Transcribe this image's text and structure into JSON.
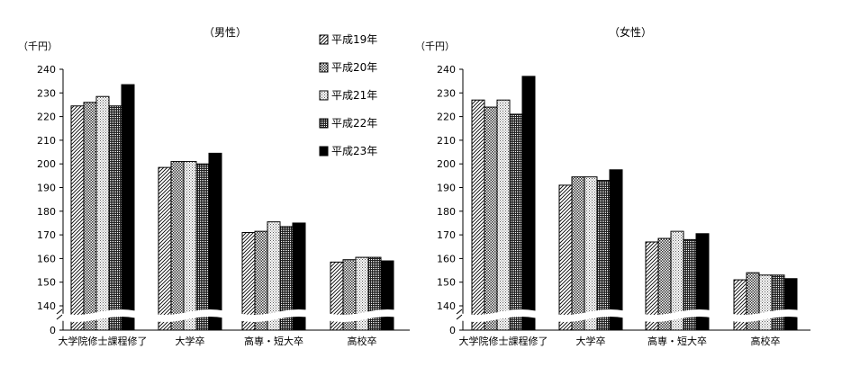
{
  "chart_data": [
    {
      "type": "bar",
      "title": "（男性）",
      "ylabel": "（千円）",
      "ylim": [
        130,
        240
      ],
      "y_axis_bottom_label": "0",
      "axis_break": true,
      "yticks": [
        240,
        230,
        220,
        210,
        200,
        190,
        180,
        170,
        160,
        150,
        140
      ],
      "categories": [
        "大学院修士課程修了",
        "大学卒",
        "高専・短大卒",
        "高校卒"
      ],
      "series": [
        {
          "name": "平成19年",
          "values": [
            224.5,
            198.5,
            171.0,
            158.5
          ]
        },
        {
          "name": "平成20年",
          "values": [
            226.0,
            201.0,
            171.5,
            159.5
          ]
        },
        {
          "name": "平成21年",
          "values": [
            228.5,
            201.0,
            175.5,
            160.5
          ]
        },
        {
          "name": "平成22年",
          "values": [
            224.5,
            200.0,
            173.5,
            160.5
          ]
        },
        {
          "name": "平成23年",
          "values": [
            233.5,
            204.5,
            175.0,
            159.0
          ]
        }
      ],
      "legend_position": "top-right"
    },
    {
      "type": "bar",
      "title": "（女性）",
      "ylabel": "（千円）",
      "ylim": [
        130,
        240
      ],
      "y_axis_bottom_label": "0",
      "axis_break": true,
      "yticks": [
        240,
        230,
        220,
        210,
        200,
        190,
        180,
        170,
        160,
        150,
        140
      ],
      "categories": [
        "大学院修士課程修了",
        "大学卒",
        "高専・短大卒",
        "高校卒"
      ],
      "series": [
        {
          "name": "平成19年",
          "values": [
            227.0,
            191.0,
            167.0,
            151.0
          ]
        },
        {
          "name": "平成20年",
          "values": [
            224.0,
            194.5,
            168.5,
            154.0
          ]
        },
        {
          "name": "平成21年",
          "values": [
            227.0,
            194.5,
            171.5,
            153.0
          ]
        },
        {
          "name": "平成22年",
          "values": [
            221.0,
            193.0,
            168.0,
            153.0
          ]
        },
        {
          "name": "平成23年",
          "values": [
            237.0,
            197.5,
            170.5,
            151.5
          ]
        }
      ]
    }
  ],
  "legend": {
    "items": [
      {
        "name": "平成19年",
        "pattern": "diag"
      },
      {
        "name": "平成20年",
        "pattern": "cross"
      },
      {
        "name": "平成21年",
        "pattern": "dots"
      },
      {
        "name": "平成22年",
        "pattern": "grid"
      },
      {
        "name": "平成23年",
        "pattern": "solid"
      }
    ]
  }
}
